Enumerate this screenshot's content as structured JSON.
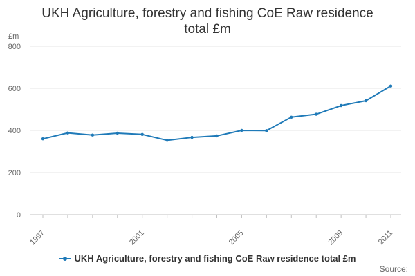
{
  "chart_data": {
    "type": "line",
    "title_lines": [
      "UKH Agriculture, forestry and fishing CoE Raw residence",
      "total £m"
    ],
    "ylabel": "£m",
    "ylim": [
      0,
      800
    ],
    "y_ticks": [
      0,
      200,
      400,
      600,
      800
    ],
    "x": [
      1997,
      1998,
      1999,
      2000,
      2001,
      2002,
      2003,
      2004,
      2005,
      2006,
      2007,
      2008,
      2009,
      2010,
      2011
    ],
    "x_tick_labels": [
      "1997",
      "2001",
      "2005",
      "2009",
      "2011"
    ],
    "series": [
      {
        "name": "UKH Agriculture, forestry and fishing CoE Raw residence total £m",
        "color": "#1f7ab8",
        "values": [
          360,
          388,
          378,
          387,
          381,
          353,
          367,
          374,
          400,
          399,
          463,
          477,
          518,
          541,
          611
        ]
      }
    ],
    "grid": true,
    "legend_position": "bottom",
    "source_label": "Source:"
  }
}
